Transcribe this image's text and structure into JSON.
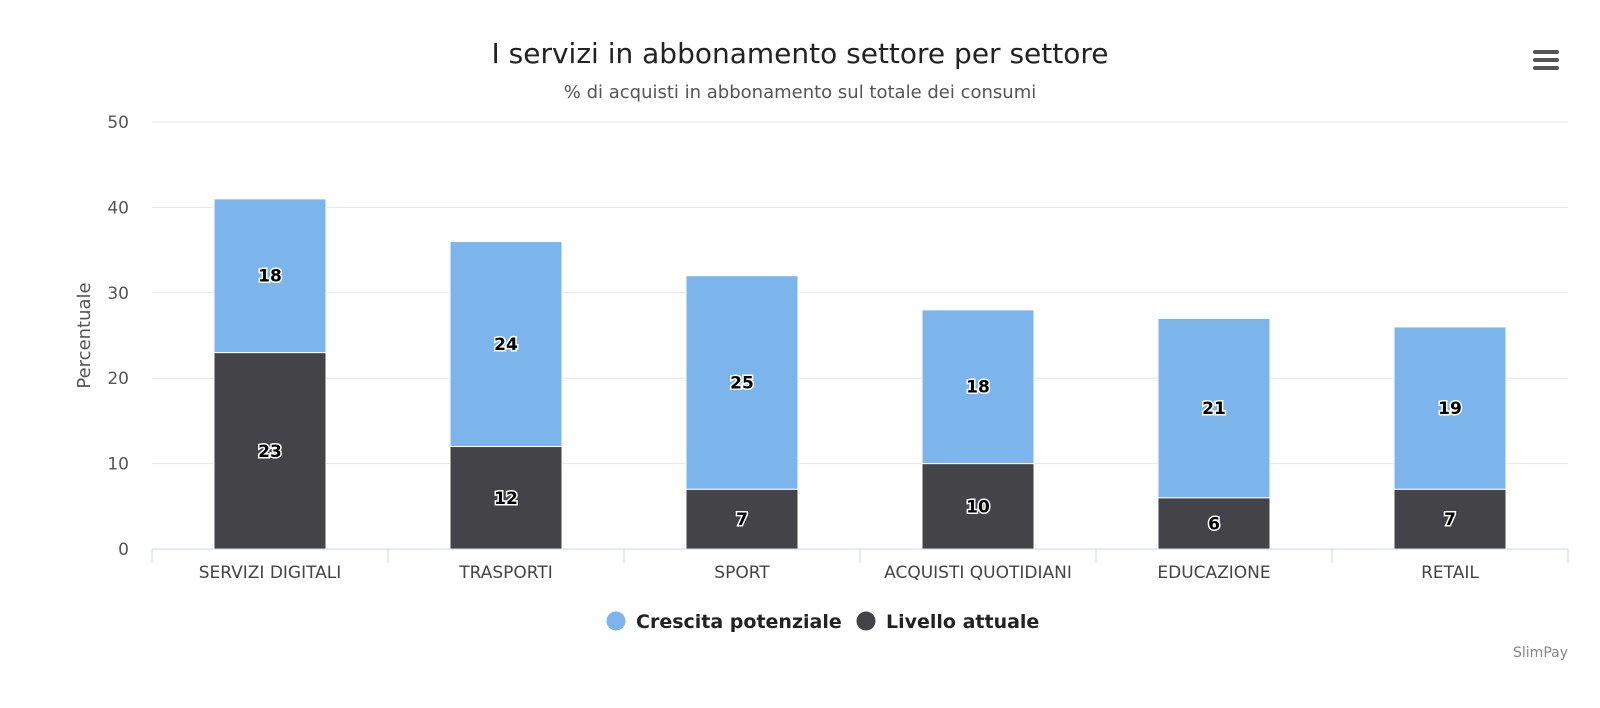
{
  "chart_data": {
    "type": "bar",
    "stacked": true,
    "title": "I servizi in abbonamento settore per settore",
    "subtitle": "% di acquisti in abbonamento sul totale dei consumi",
    "ylabel": "Percentuale",
    "ylim": [
      0,
      50
    ],
    "yticks": [
      0,
      10,
      20,
      30,
      40,
      50
    ],
    "grid": true,
    "legend_position": "bottom-center",
    "categories": [
      "SERVIZI DIGITALI",
      "TRASPORTI",
      "SPORT",
      "ACQUISTI QUOTIDIANI",
      "EDUCAZIONE",
      "RETAIL"
    ],
    "series": [
      {
        "name": "Crescita potenziale",
        "color": "#7cb5ec",
        "values": [
          18,
          24,
          25,
          18,
          21,
          19
        ]
      },
      {
        "name": "Livello attuale",
        "color": "#434348",
        "values": [
          23,
          12,
          7,
          10,
          6,
          7
        ]
      }
    ]
  },
  "menu": {
    "icon": "hamburger-menu-icon"
  },
  "credit": "SlimPay"
}
